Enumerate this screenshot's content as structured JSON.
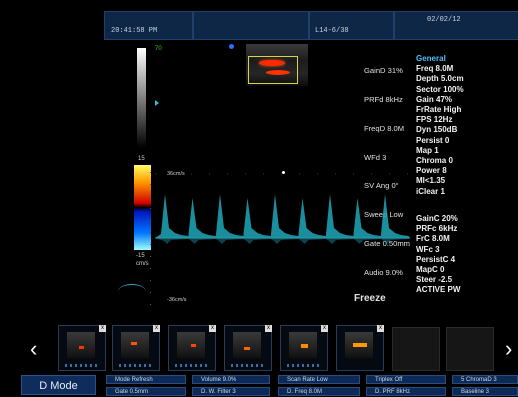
{
  "topbar": {
    "time": "20:41:58 PM",
    "probe": "L14-6/38",
    "date": "02/02/12"
  },
  "image": {
    "depth_marker": "70",
    "velocity_top": "36cm/s",
    "velocity_bottom": "-36cm/s",
    "scale_top": "15",
    "scale_bottom": "-15",
    "scale_unit": "cm/s",
    "status": "Freeze"
  },
  "params_left": [
    "GainD 31%",
    "PRFd 8kHz",
    "FreqD 8.0M",
    "WFd 3",
    "SV Ang 0°",
    "Sweep Low",
    "Gate 0.50mm",
    "Audio 9.0%"
  ],
  "params_general": {
    "header": "General",
    "items": [
      "Freq 8.0M",
      "Depth 5.0cm",
      "Sector 100%",
      "Gain 47%",
      "FrRate High",
      "FPS 12Hz",
      "Dyn 150dB",
      "Persist 0",
      "Map 1",
      "Chroma 0",
      "Power 8",
      "MI<1.35",
      "iClear 1"
    ]
  },
  "params_color": {
    "items": [
      "GainC 20%",
      "PRFc 6kHz",
      "FrC 8.0M",
      "WFc 3",
      "PersistC 4",
      "MapC 0",
      "Steer -2.5",
      "ACTIVE PW"
    ]
  },
  "thumbnails": {
    "close_glyph": "x",
    "prev_glyph": "‹",
    "next_glyph": "›"
  },
  "mode_label": "D Mode",
  "bottom_buttons": {
    "row1": [
      "Mode Refresh",
      "Volume 9.0%",
      "Scan Rate Low",
      "Triplex Off",
      "5 ChromaD 3"
    ],
    "row2": [
      "Gate 0.5mm",
      "D. W. Filter 3",
      "D. Freq 8.0M",
      "D. PRF 8kHz",
      "Baseline 3"
    ]
  },
  "colors": {
    "panel_blue": "#0c2a55",
    "spectral": "#1fa7b8",
    "accent": "#4cc0ff"
  }
}
